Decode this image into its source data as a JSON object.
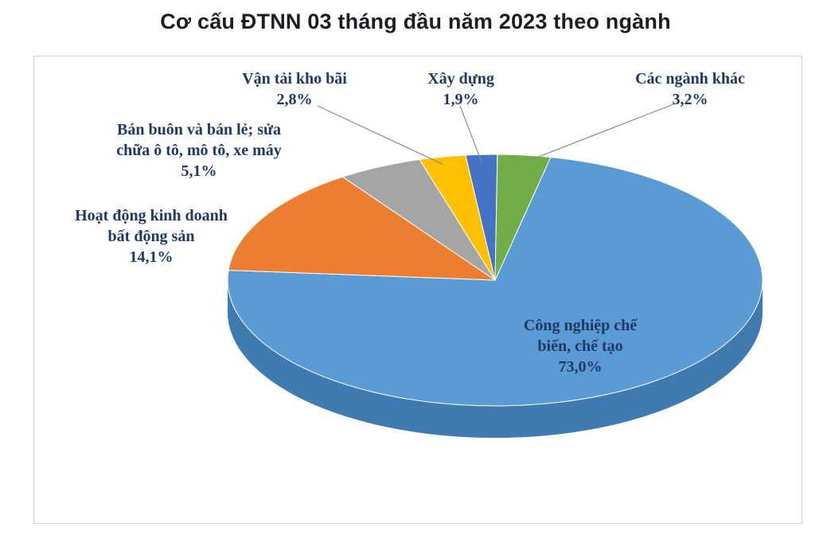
{
  "title": "Cơ cấu ĐTNN 03 tháng đầu năm 2023 theo ngành",
  "chart_data": {
    "type": "pie",
    "style": "3d",
    "title": "Cơ cấu ĐTNN 03 tháng đầu năm 2023 theo ngành",
    "unit": "%",
    "legend": "none",
    "labels_style": "callout",
    "clockwise": true,
    "start_angle_deg": 12,
    "slices": [
      {
        "label": "Công nghiệp chế biến, chế tạo",
        "value": 73.0,
        "display": "73,0%",
        "color": "#5B9BD5",
        "side_color": "#3F7AB1"
      },
      {
        "label": "Hoạt động kinh doanh bất động sản",
        "value": 14.1,
        "display": "14,1%",
        "color": "#ED7D31",
        "side_color": "#B55A1B"
      },
      {
        "label": "Bán buôn và bán lẻ; sửa chữa ô tô, mô tô, xe máy",
        "value": 5.1,
        "display": "5,1%",
        "color": "#A5A5A5",
        "side_color": "#7B7B7B"
      },
      {
        "label": "Vận tải kho bãi",
        "value": 2.8,
        "display": "2,8%",
        "color": "#FFC000",
        "side_color": "#BF9000"
      },
      {
        "label": "Xây dựng",
        "value": 1.9,
        "display": "1,9%",
        "color": "#4472C4",
        "side_color": "#2F5597"
      },
      {
        "label": "Các ngành khác",
        "value": 3.2,
        "display": "3,2%",
        "color": "#70AD47",
        "side_color": "#507E32"
      }
    ]
  },
  "callouts": {
    "cong_nghiep": {
      "l1": "Công nghiệp chế",
      "l2": "biến, chế tạo",
      "pct": "73,0%"
    },
    "bat_dong_san": {
      "l1": "Hoạt động  kinh doanh",
      "l2": "bất động sản",
      "pct": "14,1%"
    },
    "ban_buon": {
      "l1": "Bán buôn  và  bán lẻ; sửa",
      "l2": "chữa ô tô, mô tô, xe máy",
      "pct": "5,1%"
    },
    "van_tai": {
      "l1": "Vận tải kho bãi",
      "pct": "2,8%"
    },
    "xay_dung": {
      "l1": "Xây dựng",
      "pct": "1,9%"
    },
    "khac": {
      "l1": "Các ngành khác",
      "pct": "3,2%"
    }
  }
}
